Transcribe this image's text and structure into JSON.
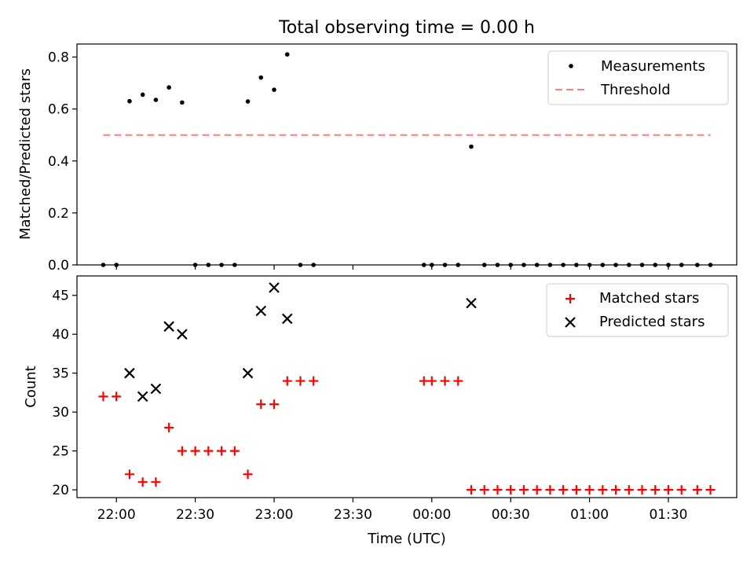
{
  "chart_data": [
    {
      "type": "scatter",
      "title": "Total observing time = 0.00 h",
      "xlabel": "",
      "ylabel": "Matched/Predicted stars",
      "ylim": [
        0,
        0.85
      ],
      "yticks": [
        "0.0",
        "0.2",
        "0.4",
        "0.6",
        "0.8"
      ],
      "ytick_values": [
        0,
        0.2,
        0.4,
        0.6,
        0.8
      ],
      "xlim": [
        "21:45",
        "01:56"
      ],
      "legend_position": "upper right",
      "series": [
        {
          "name": "Measurements",
          "marker": "dot",
          "color": "#000000",
          "points": [
            [
              "21:55",
              0
            ],
            [
              "22:00",
              0
            ],
            [
              "22:05",
              0.63
            ],
            [
              "22:10",
              0.655
            ],
            [
              "22:15",
              0.635
            ],
            [
              "22:20",
              0.683
            ],
            [
              "22:25",
              0.625
            ],
            [
              "22:30",
              0
            ],
            [
              "22:35",
              0
            ],
            [
              "22:40",
              0
            ],
            [
              "22:45",
              0
            ],
            [
              "22:50",
              0.629
            ],
            [
              "22:55",
              0.721
            ],
            [
              "23:00",
              0.674
            ],
            [
              "23:05",
              0.81
            ],
            [
              "23:10",
              0
            ],
            [
              "23:15",
              0
            ],
            [
              "23:57",
              0
            ],
            [
              "00:00",
              0
            ],
            [
              "00:05",
              0
            ],
            [
              "00:10",
              0
            ],
            [
              "00:15",
              0.455
            ],
            [
              "00:20",
              0
            ],
            [
              "00:25",
              0
            ],
            [
              "00:30",
              0
            ],
            [
              "00:35",
              0
            ],
            [
              "00:40",
              0
            ],
            [
              "00:45",
              0
            ],
            [
              "00:50",
              0
            ],
            [
              "00:55",
              0
            ],
            [
              "01:00",
              0
            ],
            [
              "01:05",
              0
            ],
            [
              "01:10",
              0
            ],
            [
              "01:15",
              0
            ],
            [
              "01:20",
              0
            ],
            [
              "01:25",
              0
            ],
            [
              "01:30",
              0
            ],
            [
              "01:35",
              0
            ],
            [
              "01:41",
              0
            ],
            [
              "01:46",
              0
            ]
          ]
        },
        {
          "name": "Threshold",
          "marker": "dashed-line",
          "color": "#ff7f7f",
          "points": [
            [
              "21:55",
              0.5
            ],
            [
              "01:46",
              0.5
            ]
          ]
        }
      ]
    },
    {
      "type": "scatter",
      "title": "",
      "xlabel": "Time (UTC)",
      "ylabel": "Count",
      "ylim": [
        19,
        47.5
      ],
      "yticks": [
        "20",
        "25",
        "30",
        "35",
        "40",
        "45"
      ],
      "ytick_values": [
        20,
        25,
        30,
        35,
        40,
        45
      ],
      "xlim": [
        "21:45",
        "01:56"
      ],
      "xticks": [
        "22:00",
        "22:30",
        "23:00",
        "23:30",
        "00:00",
        "00:30",
        "01:00",
        "01:30"
      ],
      "legend_position": "upper right",
      "series": [
        {
          "name": "Matched stars",
          "marker": "plus",
          "color": "#ff0000",
          "points": [
            [
              "21:55",
              32
            ],
            [
              "22:00",
              32
            ],
            [
              "22:05",
              22
            ],
            [
              "22:10",
              21
            ],
            [
              "22:15",
              21
            ],
            [
              "22:20",
              28
            ],
            [
              "22:25",
              25
            ],
            [
              "22:30",
              25
            ],
            [
              "22:35",
              25
            ],
            [
              "22:40",
              25
            ],
            [
              "22:45",
              25
            ],
            [
              "22:50",
              22
            ],
            [
              "22:55",
              31
            ],
            [
              "23:00",
              31
            ],
            [
              "23:05",
              34
            ],
            [
              "23:10",
              34
            ],
            [
              "23:15",
              34
            ],
            [
              "23:57",
              34
            ],
            [
              "00:00",
              34
            ],
            [
              "00:05",
              34
            ],
            [
              "00:10",
              34
            ],
            [
              "00:15",
              20
            ],
            [
              "00:20",
              20
            ],
            [
              "00:25",
              20
            ],
            [
              "00:30",
              20
            ],
            [
              "00:35",
              20
            ],
            [
              "00:40",
              20
            ],
            [
              "00:45",
              20
            ],
            [
              "00:50",
              20
            ],
            [
              "00:55",
              20
            ],
            [
              "01:00",
              20
            ],
            [
              "01:05",
              20
            ],
            [
              "01:10",
              20
            ],
            [
              "01:15",
              20
            ],
            [
              "01:20",
              20
            ],
            [
              "01:25",
              20
            ],
            [
              "01:30",
              20
            ],
            [
              "01:35",
              20
            ],
            [
              "01:41",
              20
            ],
            [
              "01:46",
              20
            ]
          ]
        },
        {
          "name": "Predicted stars",
          "marker": "x",
          "color": "#000000",
          "points": [
            [
              "22:05",
              35
            ],
            [
              "22:10",
              32
            ],
            [
              "22:15",
              33
            ],
            [
              "22:20",
              41
            ],
            [
              "22:25",
              40
            ],
            [
              "22:50",
              35
            ],
            [
              "22:55",
              43
            ],
            [
              "23:00",
              46
            ],
            [
              "23:05",
              42
            ],
            [
              "00:15",
              44
            ]
          ]
        }
      ]
    }
  ]
}
